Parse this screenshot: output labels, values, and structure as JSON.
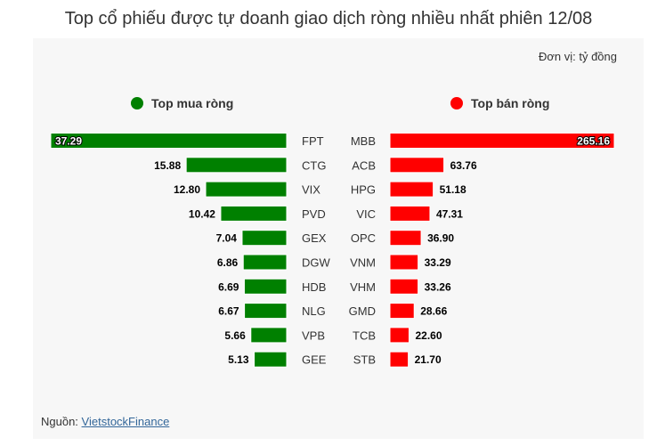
{
  "title": "Top cổ phiếu được tự doanh giao dịch ròng nhiều nhất phiên 12/08",
  "unit": "Đơn vị: tỷ đồng",
  "source": {
    "label": "Nguồn:",
    "link_text": "VietstockFinance"
  },
  "colors": {
    "buy": "#008000",
    "sell": "#ff0000"
  },
  "chart_data": [
    {
      "type": "bar",
      "orientation": "horizontal",
      "series_name": "Top mua ròng",
      "categories": [
        "FPT",
        "CTG",
        "VIX",
        "PVD",
        "GEX",
        "DGW",
        "HDB",
        "NLG",
        "VPB",
        "GEE"
      ],
      "values": [
        37.29,
        15.88,
        12.8,
        10.42,
        7.04,
        6.86,
        6.69,
        6.67,
        5.66,
        5.13
      ],
      "value_labels": [
        "37.29",
        "15.88",
        "12.80",
        "10.42",
        "7.04",
        "6.86",
        "6.69",
        "6.67",
        "5.66",
        "5.13"
      ],
      "direction": "right-to-left"
    },
    {
      "type": "bar",
      "orientation": "horizontal",
      "series_name": "Top bán ròng",
      "categories": [
        "MBB",
        "ACB",
        "HPG",
        "VIC",
        "OPC",
        "VNM",
        "VHM",
        "GMD",
        "TCB",
        "STB"
      ],
      "values": [
        265.16,
        63.76,
        51.18,
        47.31,
        36.9,
        33.29,
        33.26,
        28.66,
        22.6,
        21.7
      ],
      "value_labels": [
        "265.16",
        "63.76",
        "51.18",
        "47.31",
        "36.90",
        "33.29",
        "33.26",
        "28.66",
        "22.60",
        "21.70"
      ],
      "direction": "left-to-right"
    }
  ]
}
